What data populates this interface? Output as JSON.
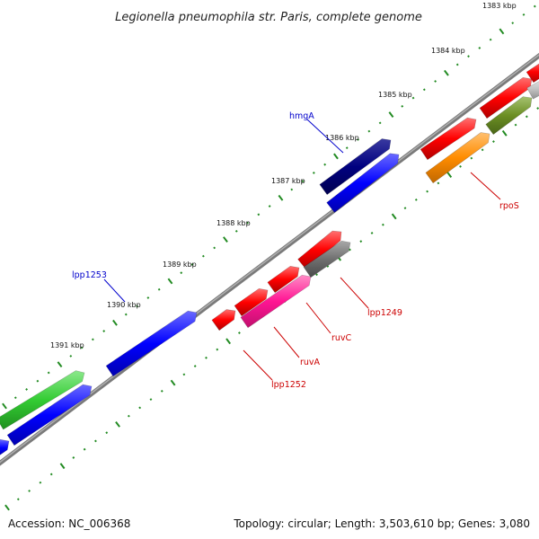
{
  "title": "Legionella pneumophila str. Paris, complete genome",
  "accession": "Accession: NC_006368",
  "summary": "Topology: circular; Length: 3,503,610 bp; Genes: 3,080",
  "ticks": [
    "1383 kbp",
    "1384 kbp",
    "1385 kbp",
    "1386 kbp",
    "1387 kbp",
    "1388 kbp",
    "1389 kbp",
    "1390 kbp",
    "1391 kbp"
  ],
  "gene_labels": [
    {
      "name": "hmgA",
      "color": "#0000cc"
    },
    {
      "name": "lpp1253",
      "color": "#0000cc"
    },
    {
      "name": "rpoS",
      "color": "#cc0000"
    },
    {
      "name": "lpp1249",
      "color": "#cc0000"
    },
    {
      "name": "ruvC",
      "color": "#cc0000"
    },
    {
      "name": "ruvA",
      "color": "#cc0000"
    },
    {
      "name": "lpp1252",
      "color": "#cc0000"
    }
  ],
  "colors": {
    "backbone": "#808080",
    "tick": "#228b22",
    "forward_strand": "#0000ff",
    "reverse_strand": "#ff0000",
    "navy": "#000080",
    "green": "#33cc33",
    "olive": "#6b8e23",
    "orange": "#ff8c00",
    "magenta": "#ff1493",
    "gray_gene": "#707070"
  }
}
